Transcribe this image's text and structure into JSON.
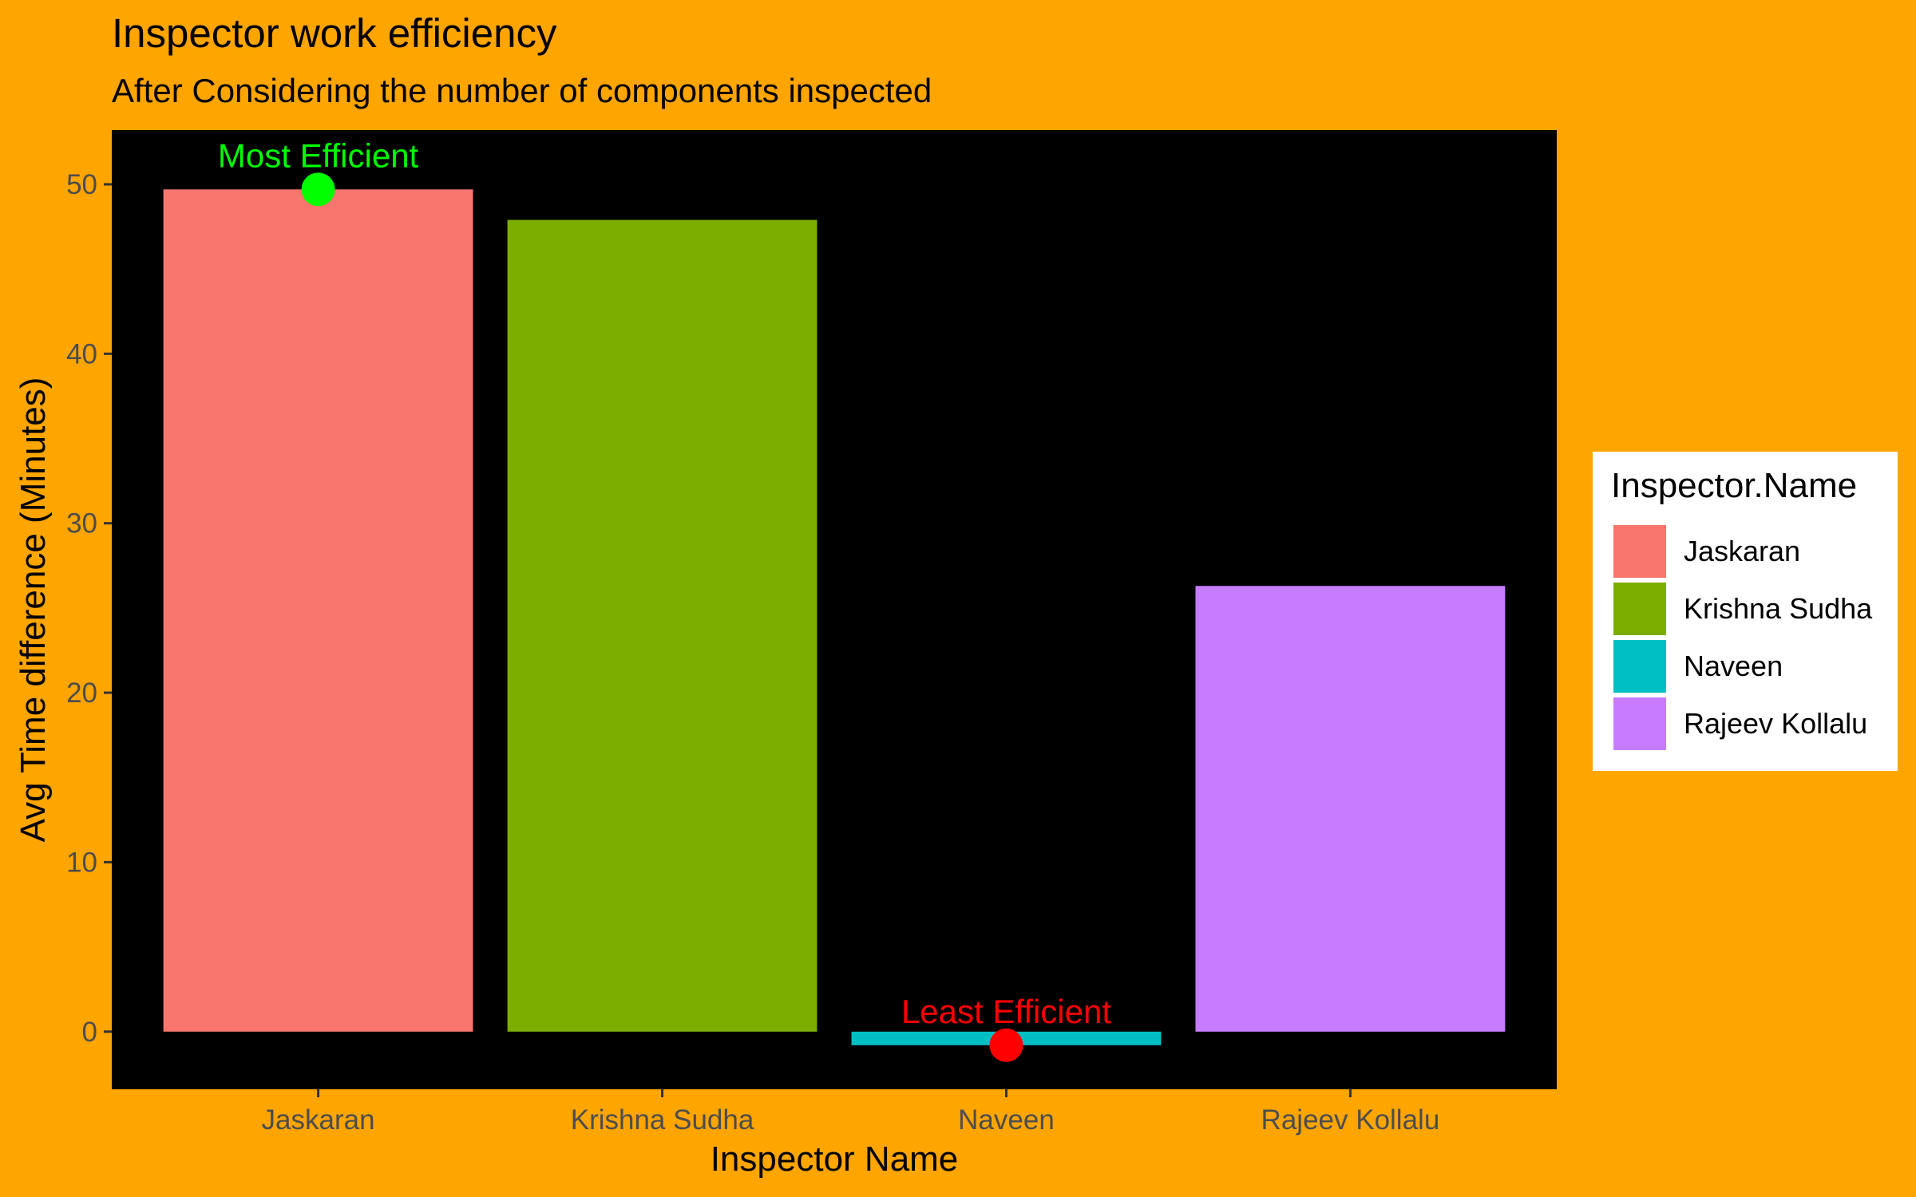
{
  "title": "Inspector work efficiency",
  "subtitle": "After Considering the number of components inspected",
  "colors": {
    "page_background": "#FFA500",
    "panel_background": "#000000",
    "most_efficient": "#00FF00",
    "least_efficient": "#FF0000",
    "tick_text": "#4D4D4D"
  },
  "legend": {
    "title": "Inspector.Name",
    "items": [
      {
        "label": "Jaskaran",
        "color": "#F8766D"
      },
      {
        "label": "Krishna Sudha",
        "color": "#7CAE00"
      },
      {
        "label": "Naveen",
        "color": "#00BFC4"
      },
      {
        "label": "Rajeev Kollalu",
        "color": "#C77CFF"
      }
    ]
  },
  "chart_data": {
    "type": "bar",
    "title": "Inspector work efficiency",
    "subtitle": "After Considering the number of components inspected",
    "xlabel": "Inspector Name",
    "ylabel": "Avg Time difference (Minutes)",
    "categories": [
      "Jaskaran",
      "Krishna Sudha",
      "Naveen",
      "Rajeev Kollalu"
    ],
    "values": [
      49.7,
      47.9,
      -0.8,
      26.3
    ],
    "colors": [
      "#F8766D",
      "#7CAE00",
      "#00BFC4",
      "#C77CFF"
    ],
    "ylim": [
      -3.4,
      53.2
    ],
    "yticks": [
      0,
      10,
      20,
      30,
      40,
      50
    ],
    "grid": false,
    "legend_position": "right",
    "annotations": [
      {
        "category": "Jaskaran",
        "value": 49.7,
        "text": "Most Efficient",
        "color": "#00FF00"
      },
      {
        "category": "Naveen",
        "value": -0.8,
        "text": "Least Efficient",
        "color": "#FF0000"
      }
    ]
  }
}
